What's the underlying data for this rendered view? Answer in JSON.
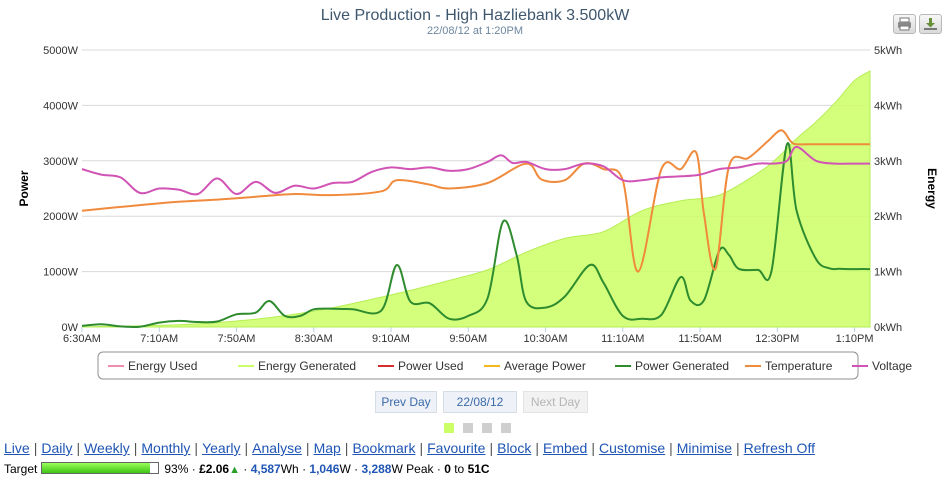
{
  "chart_data": {
    "type": "area",
    "title": "Live Production - High Hazliebank 3.500kW",
    "subtitle": "22/08/12 at 1:20PM",
    "ylabel": "Power",
    "y2label": "Energy",
    "x_ticks": [
      "6:30AM",
      "7:10AM",
      "7:50AM",
      "8:30AM",
      "9:10AM",
      "9:50AM",
      "10:30AM",
      "11:10AM",
      "11:50AM",
      "12:30PM",
      "1:10PM"
    ],
    "y_ticks": [
      "0W",
      "1000W",
      "2000W",
      "3000W",
      "4000W",
      "5000W"
    ],
    "y2_ticks": [
      "0kWh",
      "1kWh",
      "2kWh",
      "3kWh",
      "4kWh",
      "5kWh"
    ],
    "xlim_minutes": [
      390,
      798
    ],
    "ylim": [
      0,
      5000
    ],
    "y2lim": [
      0,
      5
    ],
    "series": [
      {
        "name": "Energy Used",
        "color": "#f08cb0",
        "axis": "energy",
        "x": [],
        "values": []
      },
      {
        "name": "Energy Generated",
        "color": "#ccff66",
        "axis": "energy",
        "area": true,
        "x": [
          390,
          400,
          420,
          440,
          460,
          480,
          500,
          520,
          540,
          560,
          580,
          600,
          620,
          640,
          660,
          680,
          700,
          720,
          740,
          750,
          760,
          770,
          780,
          790,
          798
        ],
        "values": [
          0.0,
          0.01,
          0.02,
          0.04,
          0.08,
          0.14,
          0.23,
          0.35,
          0.5,
          0.66,
          0.84,
          1.03,
          1.35,
          1.6,
          1.72,
          2.1,
          2.28,
          2.38,
          2.78,
          3.05,
          3.4,
          3.7,
          4.05,
          4.45,
          4.62
        ]
      },
      {
        "name": "Power Used",
        "color": "#d62c2c",
        "axis": "power",
        "x": [],
        "values": []
      },
      {
        "name": "Average Power",
        "color": "#f2b81c",
        "axis": "power",
        "x": [],
        "values": []
      },
      {
        "name": "Power Generated",
        "color": "#2e8b2e",
        "axis": "power",
        "x": [
          390,
          400,
          410,
          420,
          430,
          440,
          450,
          460,
          470,
          480,
          487,
          495,
          503,
          510,
          520,
          530,
          545,
          553,
          560,
          570,
          580,
          590,
          600,
          608,
          615,
          620,
          630,
          640,
          653,
          660,
          670,
          680,
          690,
          700,
          705,
          712,
          720,
          725,
          730,
          740,
          747,
          755,
          760,
          770,
          777,
          782,
          787,
          792,
          798
        ],
        "values": [
          20,
          50,
          10,
          5,
          80,
          110,
          90,
          100,
          230,
          260,
          470,
          200,
          200,
          320,
          330,
          320,
          300,
          1120,
          460,
          430,
          150,
          200,
          520,
          1900,
          1300,
          460,
          350,
          550,
          1120,
          800,
          200,
          150,
          220,
          900,
          480,
          480,
          1380,
          1300,
          1050,
          1030,
          1010,
          3300,
          2100,
          1230,
          1060,
          1050,
          1045,
          1046,
          1046
        ]
      },
      {
        "name": "Temperature",
        "color": "#f08a3c",
        "axis": "power",
        "x": [
          390,
          420,
          440,
          460,
          480,
          500,
          520,
          545,
          553,
          570,
          580,
          600,
          620,
          628,
          640,
          650,
          660,
          670,
          678,
          690,
          700,
          708,
          712,
          718,
          725,
          735,
          745,
          752,
          757,
          760,
          770,
          780,
          790,
          798
        ],
        "values": [
          2100,
          2200,
          2260,
          2300,
          2350,
          2400,
          2380,
          2450,
          2650,
          2570,
          2500,
          2600,
          2950,
          2660,
          2650,
          2950,
          2850,
          2650,
          1000,
          2850,
          2850,
          3150,
          2050,
          1050,
          2900,
          3050,
          3350,
          3550,
          3350,
          3300,
          3300,
          3300,
          3300,
          3300
        ]
      },
      {
        "name": "Voltage",
        "color": "#d153b5",
        "axis": "power",
        "x": [
          390,
          400,
          410,
          420,
          430,
          440,
          450,
          460,
          470,
          480,
          490,
          500,
          510,
          520,
          530,
          540,
          550,
          560,
          570,
          580,
          590,
          600,
          607,
          613,
          620,
          630,
          640,
          650,
          660,
          670,
          680,
          690,
          700,
          710,
          720,
          730,
          740,
          748,
          755,
          760,
          770,
          780,
          790,
          798
        ],
        "values": [
          2850,
          2750,
          2700,
          2420,
          2500,
          2480,
          2400,
          2680,
          2400,
          2620,
          2420,
          2550,
          2500,
          2600,
          2620,
          2800,
          2880,
          2850,
          2880,
          2820,
          2850,
          2980,
          3100,
          2960,
          2980,
          2850,
          2850,
          2950,
          2900,
          2650,
          2650,
          2700,
          2720,
          2750,
          2850,
          2880,
          2950,
          2950,
          3000,
          3250,
          3000,
          2950,
          2950,
          2950
        ]
      }
    ],
    "legend_placement": "bottom-center",
    "grid": true
  },
  "navigation": {
    "prev_label": "Prev Day",
    "date_label": "22/08/12",
    "next_label": "Next Day"
  },
  "links": [
    "Live",
    "Daily",
    "Weekly",
    "Monthly",
    "Yearly",
    "Analyse",
    "Map",
    "Bookmark",
    "Favourite",
    "Block",
    "Embed",
    "Customise",
    "Minimise",
    "Refresh Off"
  ],
  "status": {
    "target_label": "Target",
    "target_fraction": 0.93,
    "target_percent": "93%",
    "separator": "·",
    "money": "£2.06",
    "trend_arrow": "▲",
    "energy_value": "4,587",
    "energy_unit": "Wh",
    "power_value": "1,046",
    "power_unit": "W",
    "peak_value": "3,288",
    "peak_unit": "W Peak",
    "temp_min": "0",
    "temp_to": "to",
    "temp_max": "51C"
  },
  "icons": {
    "print": "printer-icon",
    "export": "download-icon"
  }
}
